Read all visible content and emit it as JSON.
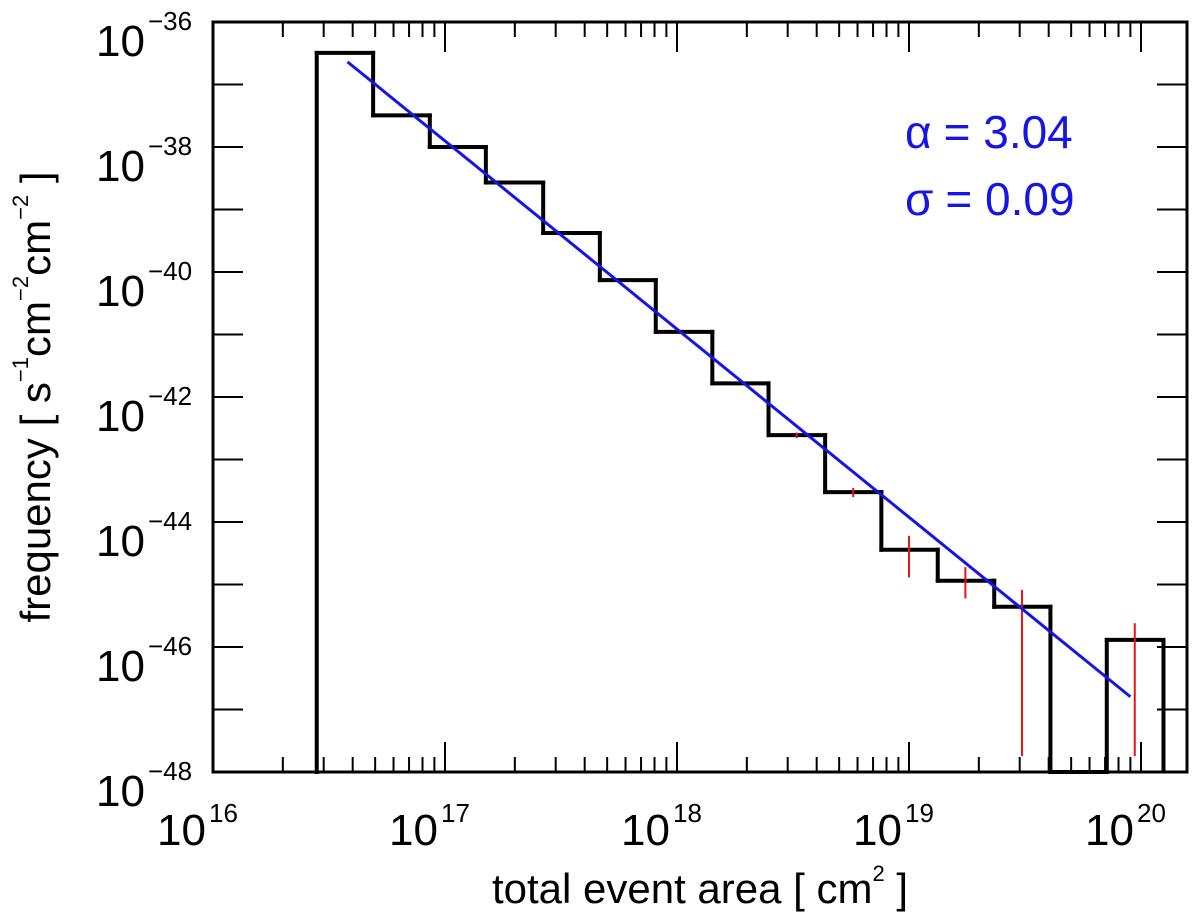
{
  "chart_data": {
    "type": "histogram",
    "xscale": "log",
    "yscale": "log",
    "xlim": [
      1e+16,
      1.3e+20
    ],
    "ylim": [
      1e-48,
      1e-36
    ],
    "x_ticks": [
      {
        "base": "10",
        "exp": "16",
        "value": 1e+16
      },
      {
        "base": "10",
        "exp": "17",
        "value": 1e+17
      },
      {
        "base": "10",
        "exp": "18",
        "value": 1e+18
      },
      {
        "base": "10",
        "exp": "19",
        "value": 1e+19
      },
      {
        "base": "10",
        "exp": "20",
        "value": 1e+20
      }
    ],
    "y_ticks": [
      {
        "base": "10",
        "exp": "−36",
        "value": 1e-36
      },
      {
        "base": "10",
        "exp": "−38",
        "value": 1e-38
      },
      {
        "base": "10",
        "exp": "−40",
        "value": 1e-40
      },
      {
        "base": "10",
        "exp": "−42",
        "value": 1e-42
      },
      {
        "base": "10",
        "exp": "−44",
        "value": 1e-44
      },
      {
        "base": "10",
        "exp": "−46",
        "value": 1e-46
      },
      {
        "base": "10",
        "exp": "−48",
        "value": 1e-48
      }
    ],
    "xlabel": {
      "before": "total event area  [ cm",
      "sup": "2",
      "after": " ]"
    },
    "ylabel": {
      "p1": "frequency  [ s",
      "s1": "−1",
      "p2": "cm",
      "s2": "−2",
      "p3": "cm",
      "s3": "−2",
      "p4": " ]"
    },
    "histogram": {
      "color": "#000000",
      "bin_edges": [
        2.8e+16,
        4.9e+16,
        8.6e+16,
        1.5e+17,
        2.65e+17,
        4.65e+17,
        8.1e+17,
        1.42e+18,
        2.48e+18,
        4.35e+18,
        7.6e+18,
        1.33e+19,
        2.33e+19,
        4.07e+19,
        7.12e+19,
        1.25e+20
      ],
      "values": [
        3.2e-37,
        3.2e-38,
        1e-38,
        2.7e-39,
        4.2e-40,
        7.4e-41,
        1.1e-41,
        1.65e-42,
        2.45e-43,
        3e-44,
        3.6e-45,
        1.15e-45,
        4.4e-46,
        0,
        1.3e-46
      ]
    },
    "error_bars": {
      "color": "#e8141c",
      "points": [
        {
          "x": 3.28e+18,
          "low": 2.2e-43,
          "high": 2.7e-43
        },
        {
          "x": 5.75e+18,
          "low": 2.5e-44,
          "high": 3.5e-44
        },
        {
          "x": 1e+19,
          "low": 1.3e-45,
          "high": 6e-45
        },
        {
          "x": 1.75e+19,
          "low": 6e-46,
          "high": 1.9e-45
        },
        {
          "x": 3.07e+19,
          "low": 1.8e-48,
          "high": 8.2e-46
        },
        {
          "x": 9.4e+19,
          "low": 1.8e-48,
          "high": 2.4e-46
        }
      ]
    },
    "fit_line": {
      "color": "#1515e6",
      "x": [
        3.8e+16,
        9e+19
      ],
      "y": [
        2.3e-37,
        1.6e-47
      ]
    },
    "annotations": [
      {
        "symbol": "α",
        "value": "= 3.04",
        "color": "#1515e6"
      },
      {
        "symbol": "σ",
        "value": "= 0.09",
        "color": "#1515e6"
      }
    ]
  }
}
